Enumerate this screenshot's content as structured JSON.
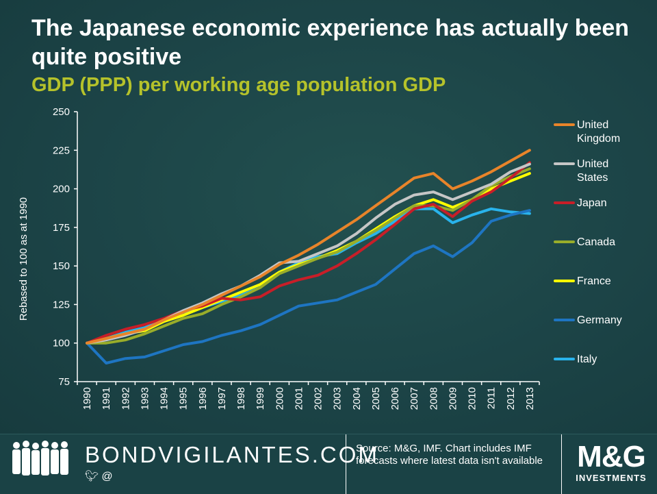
{
  "chart_data": {
    "type": "line",
    "title": "The Japanese economic experience has actually been quite positive",
    "subtitle": "GDP (PPP) per working age population GDP",
    "ylabel": "Rebased to 100 as at 1990",
    "xlabel": "",
    "ylim": [
      75,
      250
    ],
    "yticks": [
      75,
      100,
      125,
      150,
      175,
      200,
      225,
      250
    ],
    "grid": false,
    "legend_position": "right",
    "categories": [
      "1990",
      "1991",
      "1992",
      "1993",
      "1994",
      "1995",
      "1996",
      "1997",
      "1998",
      "1999",
      "2000",
      "2001",
      "2002",
      "2003",
      "2004",
      "2005",
      "2006",
      "2007",
      "2008",
      "2009",
      "2010",
      "2011",
      "2012",
      "2013"
    ],
    "series": [
      {
        "name": "United Kingdom",
        "color": "#e8842a",
        "values": [
          100,
          103,
          106,
          109,
          115,
          120,
          125,
          131,
          137,
          143,
          151,
          157,
          164,
          172,
          180,
          189,
          198,
          207,
          210,
          200,
          205,
          211,
          218,
          225
        ]
      },
      {
        "name": "United States",
        "color": "#c6c6c6",
        "values": [
          100,
          102,
          105,
          109,
          115,
          121,
          126,
          132,
          137,
          144,
          152,
          153,
          158,
          163,
          171,
          181,
          190,
          196,
          198,
          193,
          198,
          203,
          211,
          216
        ]
      },
      {
        "name": "Japan",
        "color": "#c81e28",
        "values": [
          100,
          105,
          109,
          112,
          116,
          121,
          124,
          129,
          128,
          130,
          137,
          141,
          144,
          150,
          158,
          167,
          177,
          187,
          190,
          182,
          192,
          198,
          207,
          217
        ]
      },
      {
        "name": "Canada",
        "color": "#99ad2a",
        "values": [
          100,
          100,
          102,
          106,
          111,
          116,
          119,
          125,
          130,
          136,
          145,
          150,
          155,
          159,
          166,
          173,
          181,
          189,
          189,
          186,
          193,
          202,
          208,
          213
        ]
      },
      {
        "name": "France",
        "color": "#ffff00",
        "values": [
          100,
          103,
          106,
          108,
          114,
          118,
          123,
          128,
          133,
          138,
          146,
          151,
          155,
          160,
          166,
          174,
          182,
          189,
          193,
          188,
          193,
          200,
          205,
          210
        ]
      },
      {
        "name": "Germany",
        "color": "#1e75c2",
        "values": [
          100,
          87,
          90,
          91,
          95,
          99,
          101,
          105,
          108,
          112,
          118,
          124,
          126,
          128,
          133,
          138,
          148,
          158,
          163,
          156,
          165,
          179,
          183,
          186
        ]
      },
      {
        "name": "Italy",
        "color": "#29b3ec",
        "values": [
          100,
          103,
          107,
          110,
          115,
          120,
          123,
          127,
          131,
          136,
          146,
          152,
          156,
          158,
          165,
          171,
          179,
          187,
          187,
          178,
          183,
          187,
          185,
          184
        ]
      }
    ]
  },
  "footer": {
    "brand": "BONDVIGILANTES.COM",
    "social_twitter_icon": "twitter-icon",
    "social_at": "@",
    "source": "Source: M&G, IMF. Chart includes IMF forecasts where latest data isn't available",
    "logo": "M&G",
    "logo_sub": "INVESTMENTS"
  }
}
